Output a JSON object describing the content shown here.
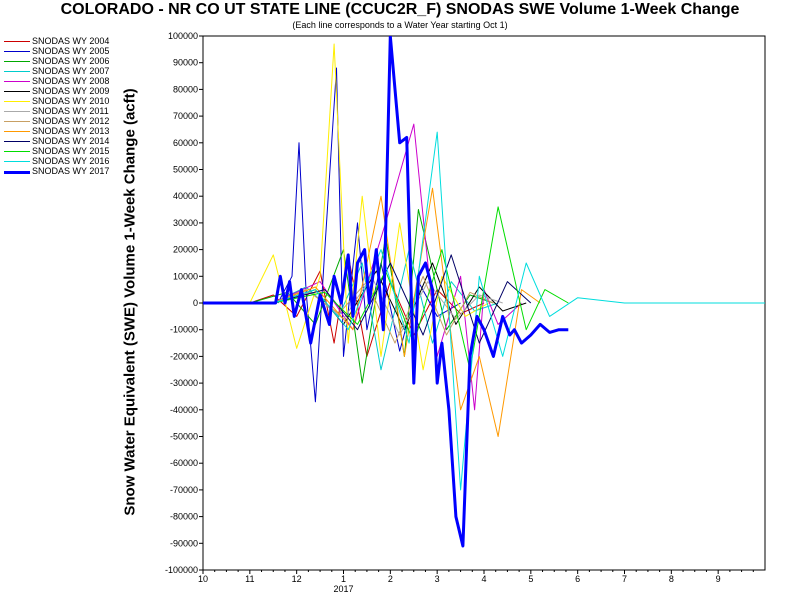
{
  "chart_data": {
    "type": "line",
    "title": "COLORADO - NR CO UT STATE LINE (CCUC2R_F) SNODAS SWE Volume 1-Week Change",
    "subtitle": "(Each line corresponds to a Water Year starting Oct 1)",
    "ylabel": "Snow Water Equivalent (SWE) Volume 1-Week Change (acft)",
    "xlabel": "",
    "ylim": [
      -100000,
      100000
    ],
    "y_ticks": [
      100000,
      90000,
      80000,
      70000,
      60000,
      50000,
      40000,
      30000,
      20000,
      10000,
      0,
      -10000,
      -20000,
      -30000,
      -40000,
      -50000,
      -60000,
      -70000,
      -80000,
      -90000,
      -100000
    ],
    "x_ticks": [
      "10",
      "11",
      "12",
      "1",
      "2",
      "3",
      "4",
      "5",
      "6",
      "7",
      "8",
      "9"
    ],
    "x_year_label": "2017",
    "x_unit": "month of water year (10 = Oct 1)",
    "xlim": [
      0,
      12
    ],
    "grid": false,
    "legend_position": "left",
    "series": [
      {
        "name": "SNODAS WY 2004",
        "color": "#cc0000",
        "width": 1,
        "x": [
          1.0,
          1.5,
          2.0,
          2.5,
          2.8,
          3.1,
          3.5,
          4.0,
          4.5,
          5.0,
          5.5,
          6.0
        ],
        "values": [
          0,
          3000,
          -5000,
          12000,
          -15000,
          18000,
          -20000,
          8000,
          -12000,
          5000,
          -4000,
          0
        ]
      },
      {
        "name": "SNODAS WY 2005",
        "color": "#0000cc",
        "width": 1,
        "x": [
          1.6,
          1.9,
          2.05,
          2.2,
          2.4,
          2.6,
          2.85,
          3.0,
          3.3,
          3.5,
          3.8,
          4.2,
          4.6,
          5.0,
          5.5
        ],
        "values": [
          0,
          10000,
          60000,
          5000,
          -37000,
          20000,
          88000,
          -20000,
          30000,
          -10000,
          15000,
          -18000,
          8000,
          -5000,
          0
        ]
      },
      {
        "name": "SNODAS WY 2006",
        "color": "#00aa00",
        "width": 1,
        "x": [
          1.0,
          1.8,
          2.4,
          3.0,
          3.4,
          3.9,
          4.3,
          4.6,
          5.2,
          5.7,
          6.2
        ],
        "values": [
          0,
          4000,
          -8000,
          20000,
          -30000,
          25000,
          -20000,
          35000,
          -10000,
          3000,
          0
        ]
      },
      {
        "name": "SNODAS WY 2007",
        "color": "#00cccc",
        "width": 1,
        "x": [
          1.5,
          2.2,
          2.9,
          3.4,
          3.8,
          4.4,
          4.9,
          5.3,
          5.8,
          6.3
        ],
        "values": [
          0,
          6000,
          -5000,
          15000,
          -25000,
          20000,
          -15000,
          8000,
          -3000,
          0
        ]
      },
      {
        "name": "SNODAS WY 2008",
        "color": "#cc00cc",
        "width": 1,
        "x": [
          1.5,
          2.5,
          3.2,
          3.9,
          4.5,
          5.0,
          5.5,
          5.8,
          6.0,
          6.3,
          6.8
        ],
        "values": [
          0,
          8000,
          -10000,
          30000,
          67000,
          -20000,
          10000,
          -40000,
          5000,
          -8000,
          0
        ]
      },
      {
        "name": "SNODAS WY 2009",
        "color": "#000000",
        "width": 1,
        "x": [
          1.5,
          2.4,
          3.0,
          3.7,
          4.3,
          4.9,
          5.4,
          5.9,
          6.4,
          6.9
        ],
        "values": [
          0,
          5000,
          -8000,
          12000,
          -10000,
          15000,
          -8000,
          6000,
          -3000,
          0
        ]
      },
      {
        "name": "SNODAS WY 2010",
        "color": "#ffee00",
        "width": 1,
        "x": [
          1.0,
          1.5,
          2.0,
          2.5,
          2.8,
          3.1,
          3.4,
          3.8,
          4.2,
          4.7,
          5.1,
          5.6,
          6.1
        ],
        "values": [
          0,
          18000,
          -17000,
          10000,
          97000,
          -15000,
          40000,
          -20000,
          30000,
          -25000,
          10000,
          -5000,
          0
        ]
      },
      {
        "name": "SNODAS WY 2011",
        "color": "#aaaaaa",
        "width": 1,
        "x": [
          1.5,
          2.3,
          3.0,
          3.6,
          4.2,
          4.8,
          5.4,
          5.9,
          6.4
        ],
        "values": [
          0,
          4000,
          -6000,
          10000,
          -12000,
          8000,
          -6000,
          3000,
          0
        ]
      },
      {
        "name": "SNODAS WY 2012",
        "color": "#c8a064",
        "width": 1,
        "x": [
          1.5,
          2.2,
          2.9,
          3.5,
          4.1,
          4.7,
          5.2,
          5.7,
          6.2
        ],
        "values": [
          0,
          5000,
          -4000,
          8000,
          -15000,
          10000,
          -12000,
          4000,
          0
        ]
      },
      {
        "name": "SNODAS WY 2013",
        "color": "#ff9900",
        "width": 1,
        "x": [
          1.5,
          2.4,
          3.2,
          3.8,
          4.3,
          4.9,
          5.5,
          5.9,
          6.3,
          6.8,
          7.2
        ],
        "values": [
          0,
          6000,
          -10000,
          40000,
          -20000,
          43000,
          -40000,
          -20000,
          -50000,
          5000,
          0
        ]
      },
      {
        "name": "SNODAS WY 2014",
        "color": "#000066",
        "width": 1,
        "x": [
          1.5,
          2.6,
          3.3,
          4.0,
          4.7,
          5.3,
          5.9,
          6.5,
          7.0
        ],
        "values": [
          0,
          5000,
          -10000,
          15000,
          -12000,
          18000,
          -15000,
          8000,
          0
        ]
      },
      {
        "name": "SNODAS WY 2015",
        "color": "#00dd00",
        "width": 1,
        "x": [
          1.5,
          2.6,
          3.3,
          3.9,
          4.5,
          5.1,
          5.7,
          6.3,
          6.9,
          7.3,
          7.8
        ],
        "values": [
          0,
          4000,
          -8000,
          12000,
          -15000,
          20000,
          -25000,
          36000,
          -10000,
          5000,
          0
        ]
      },
      {
        "name": "SNODAS WY 2016",
        "color": "#00dddd",
        "width": 1,
        "x": [
          1.5,
          2.4,
          3.1,
          3.8,
          4.4,
          5.0,
          5.5,
          5.9,
          6.4,
          6.9,
          7.4,
          8.0,
          9.0,
          12.0
        ],
        "values": [
          0,
          5000,
          -10000,
          20000,
          -15000,
          64000,
          -70000,
          10000,
          -20000,
          15000,
          -5000,
          2000,
          0,
          0
        ]
      },
      {
        "name": "SNODAS WY 2017",
        "color": "#0000ff",
        "width": 3,
        "x": [
          0.0,
          1.0,
          1.55,
          1.65,
          1.75,
          1.85,
          1.95,
          2.1,
          2.3,
          2.5,
          2.7,
          2.8,
          2.95,
          3.1,
          3.2,
          3.3,
          3.45,
          3.55,
          3.7,
          3.85,
          4.0,
          4.2,
          4.35,
          4.5,
          4.6,
          4.75,
          4.9,
          5.0,
          5.1,
          5.25,
          5.4,
          5.55,
          5.7,
          5.85,
          6.0,
          6.2,
          6.4,
          6.55,
          6.65,
          6.8,
          7.0,
          7.2,
          7.4,
          7.6,
          7.8
        ],
        "values": [
          0,
          0,
          0,
          10000,
          0,
          8000,
          -5000,
          5000,
          -15000,
          3000,
          -8000,
          10000,
          0,
          18000,
          -5000,
          15000,
          20000,
          0,
          20000,
          -10000,
          100000,
          60000,
          62000,
          -30000,
          10000,
          15000,
          5000,
          -30000,
          -15000,
          -40000,
          -80000,
          -91000,
          -20000,
          -5000,
          -10000,
          -20000,
          -5000,
          -12000,
          -10000,
          -15000,
          -12000,
          -8000,
          -11000,
          -10000,
          -10000
        ]
      }
    ]
  }
}
